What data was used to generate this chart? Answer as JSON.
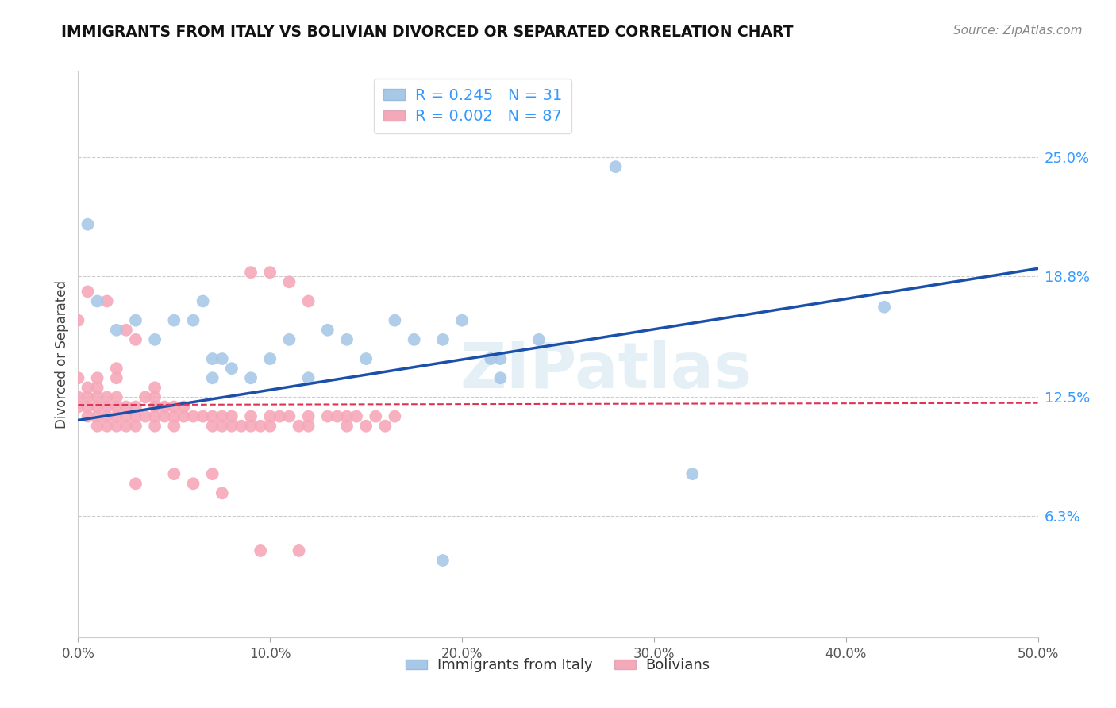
{
  "title": "IMMIGRANTS FROM ITALY VS BOLIVIAN DIVORCED OR SEPARATED CORRELATION CHART",
  "source_text": "Source: ZipAtlas.com",
  "ylabel": "Divorced or Separated",
  "xmin": 0.0,
  "xmax": 0.5,
  "ymin": 0.0,
  "ymax": 0.295,
  "yticks": [
    0.063,
    0.125,
    0.188,
    0.25
  ],
  "ytick_labels": [
    "6.3%",
    "12.5%",
    "18.8%",
    "25.0%"
  ],
  "xticks": [
    0.0,
    0.1,
    0.2,
    0.3,
    0.4,
    0.5
  ],
  "xtick_labels": [
    "0.0%",
    "10.0%",
    "20.0%",
    "30.0%",
    "40.0%",
    "50.0%"
  ],
  "legend_line1": "R = 0.245   N = 31",
  "legend_line2": "R = 0.002   N = 87",
  "legend_label_italy": "Immigrants from Italy",
  "legend_label_bolivian": "Bolivians",
  "italy_color": "#a8c8e8",
  "italy_line_color": "#1a4faa",
  "bolivian_color": "#f5a8b8",
  "bolivian_line_color": "#dd3355",
  "watermark": "ZIPatlas",
  "blue_trend_x": [
    0.0,
    0.5
  ],
  "blue_trend_y": [
    0.113,
    0.192
  ],
  "pink_trend_x": [
    0.0,
    0.5
  ],
  "pink_trend_y": [
    0.121,
    0.122
  ],
  "italy_x": [
    0.005,
    0.01,
    0.02,
    0.03,
    0.04,
    0.05,
    0.06,
    0.065,
    0.07,
    0.07,
    0.075,
    0.08,
    0.09,
    0.1,
    0.11,
    0.12,
    0.13,
    0.14,
    0.15,
    0.165,
    0.175,
    0.19,
    0.2,
    0.215,
    0.22,
    0.24,
    0.28,
    0.42,
    0.22,
    0.32,
    0.19
  ],
  "italy_y": [
    0.215,
    0.175,
    0.16,
    0.165,
    0.155,
    0.165,
    0.165,
    0.175,
    0.145,
    0.135,
    0.145,
    0.14,
    0.135,
    0.145,
    0.155,
    0.135,
    0.16,
    0.155,
    0.145,
    0.165,
    0.155,
    0.155,
    0.165,
    0.145,
    0.145,
    0.155,
    0.245,
    0.172,
    0.135,
    0.085,
    0.04
  ],
  "bolivian_x": [
    0.0,
    0.0,
    0.0,
    0.0,
    0.005,
    0.005,
    0.005,
    0.005,
    0.005,
    0.01,
    0.01,
    0.01,
    0.01,
    0.01,
    0.01,
    0.015,
    0.015,
    0.015,
    0.015,
    0.015,
    0.02,
    0.02,
    0.02,
    0.02,
    0.02,
    0.02,
    0.025,
    0.025,
    0.025,
    0.025,
    0.03,
    0.03,
    0.03,
    0.03,
    0.035,
    0.035,
    0.04,
    0.04,
    0.04,
    0.04,
    0.04,
    0.045,
    0.045,
    0.05,
    0.05,
    0.05,
    0.055,
    0.055,
    0.06,
    0.065,
    0.07,
    0.07,
    0.075,
    0.075,
    0.08,
    0.08,
    0.085,
    0.09,
    0.09,
    0.095,
    0.1,
    0.1,
    0.105,
    0.11,
    0.115,
    0.12,
    0.12,
    0.13,
    0.135,
    0.14,
    0.14,
    0.145,
    0.15,
    0.155,
    0.16,
    0.165,
    0.09,
    0.1,
    0.11,
    0.12,
    0.07,
    0.05,
    0.03,
    0.06,
    0.075,
    0.095,
    0.115
  ],
  "bolivian_y": [
    0.12,
    0.125,
    0.135,
    0.165,
    0.115,
    0.12,
    0.125,
    0.13,
    0.18,
    0.11,
    0.115,
    0.12,
    0.125,
    0.13,
    0.135,
    0.11,
    0.115,
    0.12,
    0.125,
    0.175,
    0.11,
    0.115,
    0.12,
    0.125,
    0.135,
    0.14,
    0.11,
    0.115,
    0.12,
    0.16,
    0.11,
    0.115,
    0.12,
    0.155,
    0.115,
    0.125,
    0.11,
    0.115,
    0.12,
    0.125,
    0.13,
    0.115,
    0.12,
    0.11,
    0.115,
    0.12,
    0.115,
    0.12,
    0.115,
    0.115,
    0.11,
    0.115,
    0.11,
    0.115,
    0.11,
    0.115,
    0.11,
    0.11,
    0.115,
    0.11,
    0.11,
    0.115,
    0.115,
    0.115,
    0.11,
    0.11,
    0.115,
    0.115,
    0.115,
    0.11,
    0.115,
    0.115,
    0.11,
    0.115,
    0.11,
    0.115,
    0.19,
    0.19,
    0.185,
    0.175,
    0.085,
    0.085,
    0.08,
    0.08,
    0.075,
    0.045,
    0.045
  ]
}
